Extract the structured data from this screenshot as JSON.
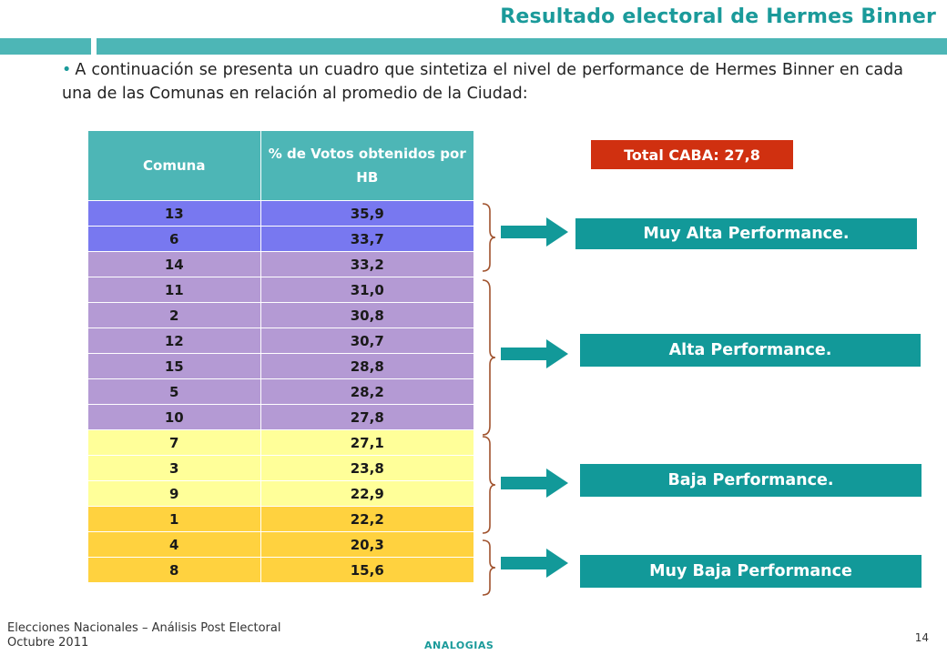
{
  "slide": {
    "title": "Resultado electoral de Hermes Binner",
    "intro": "A continuación se presenta un cuadro que sintetiza el nivel de performance de Hermes Binner en cada una de las Comunas en relación al promedio de la Ciudad:"
  },
  "table": {
    "headers": [
      "Comuna",
      "% de Votos obtenidos por HB"
    ],
    "rows": [
      {
        "comuna": "13",
        "pct": "35,9",
        "band": "blue"
      },
      {
        "comuna": "6",
        "pct": "33,7",
        "band": "blue"
      },
      {
        "comuna": "14",
        "pct": "33,2",
        "band": "lav"
      },
      {
        "comuna": "11",
        "pct": "31,0",
        "band": "lav"
      },
      {
        "comuna": "2",
        "pct": "30,8",
        "band": "lav"
      },
      {
        "comuna": "12",
        "pct": "30,7",
        "band": "lav"
      },
      {
        "comuna": "15",
        "pct": "28,8",
        "band": "lav"
      },
      {
        "comuna": "5",
        "pct": "28,2",
        "band": "lav"
      },
      {
        "comuna": "10",
        "pct": "27,8",
        "band": "lav"
      },
      {
        "comuna": "7",
        "pct": "27,1",
        "band": "yel"
      },
      {
        "comuna": "3",
        "pct": "23,8",
        "band": "yel"
      },
      {
        "comuna": "9",
        "pct": "22,9",
        "band": "yel"
      },
      {
        "comuna": "1",
        "pct": "22,2",
        "band": "org"
      },
      {
        "comuna": "4",
        "pct": "20,3",
        "band": "org"
      },
      {
        "comuna": "8",
        "pct": "15,6",
        "band": "org"
      }
    ]
  },
  "total": "Total CABA: 27,8",
  "categories": [
    "Muy Alta Performance.",
    "Alta Performance.",
    "Baja Performance.",
    "Muy Baja Performance"
  ],
  "footer": {
    "line1": "Elecciones Nacionales – Análisis Post Electoral",
    "line2": "Octubre 2011",
    "brand": "ANALOGIAS",
    "page": "14"
  },
  "colors": {
    "teal": "#4db6b6",
    "dark_teal": "#129999",
    "total_red": "#d03010",
    "row_blue": "#7878f0",
    "row_lavender": "#b49ad4",
    "row_yellow": "#ffff99",
    "row_orange": "#ffd23f",
    "brace": "#a0522d"
  }
}
